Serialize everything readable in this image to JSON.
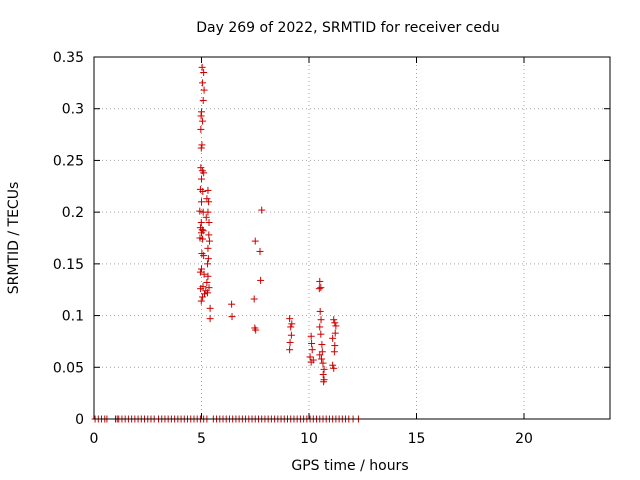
{
  "chart_data": {
    "type": "scatter",
    "title": "Day 269 of 2022, SRMTID for receiver cedu",
    "xlabel": "GPS time / hours",
    "ylabel": "SRMTID / TECUs",
    "xlim": [
      0,
      24
    ],
    "ylim": [
      0,
      0.35
    ],
    "x_ticks": [
      0,
      5,
      10,
      15,
      20
    ],
    "x_tick_labels": [
      "0",
      "5",
      "10",
      "15",
      "20"
    ],
    "y_ticks": [
      0,
      0.05,
      0.1,
      0.15,
      0.2,
      0.25,
      0.3,
      0.35
    ],
    "y_tick_labels": [
      "0",
      "0.05",
      "0.1",
      "0.15",
      "0.2",
      "0.25",
      "0.3",
      "0.35"
    ],
    "grid": true,
    "marker": "+",
    "color": "#cc0000",
    "series": [
      {
        "name": "SRMTID",
        "points": [
          [
            5.03,
            0.34
          ],
          [
            5.1,
            0.335
          ],
          [
            5.05,
            0.325
          ],
          [
            5.12,
            0.318
          ],
          [
            5.08,
            0.308
          ],
          [
            5.0,
            0.297
          ],
          [
            4.98,
            0.293
          ],
          [
            5.05,
            0.288
          ],
          [
            4.97,
            0.28
          ],
          [
            5.02,
            0.265
          ],
          [
            4.99,
            0.262
          ],
          [
            4.97,
            0.243
          ],
          [
            5.04,
            0.24
          ],
          [
            5.1,
            0.238
          ],
          [
            5.0,
            0.232
          ],
          [
            4.95,
            0.222
          ],
          [
            5.06,
            0.22
          ],
          [
            5.3,
            0.221
          ],
          [
            5.25,
            0.213
          ],
          [
            5.33,
            0.21
          ],
          [
            5.0,
            0.21
          ],
          [
            4.92,
            0.201
          ],
          [
            5.08,
            0.2
          ],
          [
            5.3,
            0.2
          ],
          [
            5.22,
            0.195
          ],
          [
            4.99,
            0.19
          ],
          [
            5.35,
            0.19
          ],
          [
            4.95,
            0.185
          ],
          [
            5.03,
            0.183
          ],
          [
            5.08,
            0.182
          ],
          [
            5.0,
            0.18
          ],
          [
            5.34,
            0.178
          ],
          [
            4.93,
            0.175
          ],
          [
            5.05,
            0.174
          ],
          [
            5.37,
            0.172
          ],
          [
            5.3,
            0.165
          ],
          [
            5.02,
            0.16
          ],
          [
            5.1,
            0.158
          ],
          [
            5.32,
            0.155
          ],
          [
            5.28,
            0.15
          ],
          [
            5.0,
            0.145
          ],
          [
            4.95,
            0.142
          ],
          [
            5.12,
            0.14
          ],
          [
            5.3,
            0.138
          ],
          [
            5.25,
            0.132
          ],
          [
            5.07,
            0.128
          ],
          [
            5.35,
            0.127
          ],
          [
            4.96,
            0.126
          ],
          [
            5.2,
            0.124
          ],
          [
            5.28,
            0.122
          ],
          [
            5.14,
            0.121
          ],
          [
            5.05,
            0.118
          ],
          [
            4.99,
            0.114
          ],
          [
            5.4,
            0.107
          ],
          [
            5.4,
            0.097
          ],
          [
            6.4,
            0.111
          ],
          [
            6.42,
            0.099
          ],
          [
            7.5,
            0.172
          ],
          [
            7.72,
            0.162
          ],
          [
            7.75,
            0.134
          ],
          [
            7.8,
            0.202
          ],
          [
            7.45,
            0.116
          ],
          [
            7.48,
            0.088
          ],
          [
            7.52,
            0.086
          ],
          [
            9.1,
            0.097
          ],
          [
            9.2,
            0.092
          ],
          [
            9.15,
            0.089
          ],
          [
            9.18,
            0.081
          ],
          [
            9.12,
            0.074
          ],
          [
            9.1,
            0.067
          ],
          [
            10.1,
            0.08
          ],
          [
            10.12,
            0.073
          ],
          [
            10.15,
            0.067
          ],
          [
            10.05,
            0.06
          ],
          [
            10.2,
            0.057
          ],
          [
            10.1,
            0.055
          ],
          [
            10.5,
            0.133
          ],
          [
            10.55,
            0.127
          ],
          [
            10.48,
            0.126
          ],
          [
            10.52,
            0.104
          ],
          [
            10.56,
            0.096
          ],
          [
            10.5,
            0.089
          ],
          [
            10.55,
            0.082
          ],
          [
            10.6,
            0.072
          ],
          [
            10.62,
            0.065
          ],
          [
            10.5,
            0.062
          ],
          [
            10.58,
            0.058
          ],
          [
            10.65,
            0.054
          ],
          [
            10.7,
            0.048
          ],
          [
            10.66,
            0.043
          ],
          [
            10.7,
            0.038
          ],
          [
            10.68,
            0.036
          ],
          [
            11.15,
            0.096
          ],
          [
            11.2,
            0.093
          ],
          [
            11.25,
            0.09
          ],
          [
            11.22,
            0.083
          ],
          [
            11.1,
            0.078
          ],
          [
            11.2,
            0.071
          ],
          [
            11.18,
            0.065
          ],
          [
            11.1,
            0.052
          ],
          [
            11.15,
            0.049
          ],
          [
            0.05,
            0
          ],
          [
            0.2,
            0
          ],
          [
            0.35,
            0
          ],
          [
            0.5,
            0
          ],
          [
            0.6,
            0
          ],
          [
            1.0,
            0
          ],
          [
            1.08,
            0
          ],
          [
            1.15,
            0
          ],
          [
            1.3,
            0
          ],
          [
            1.45,
            0
          ],
          [
            1.6,
            0
          ],
          [
            1.75,
            0
          ],
          [
            1.9,
            0
          ],
          [
            2.05,
            0
          ],
          [
            2.2,
            0
          ],
          [
            2.35,
            0
          ],
          [
            2.5,
            0
          ],
          [
            2.65,
            0
          ],
          [
            2.8,
            0
          ],
          [
            3.0,
            0
          ],
          [
            3.15,
            0
          ],
          [
            3.3,
            0
          ],
          [
            3.45,
            0
          ],
          [
            3.6,
            0
          ],
          [
            3.75,
            0
          ],
          [
            3.9,
            0
          ],
          [
            4.05,
            0
          ],
          [
            4.2,
            0
          ],
          [
            4.35,
            0
          ],
          [
            4.5,
            0
          ],
          [
            4.65,
            0
          ],
          [
            4.8,
            0
          ],
          [
            4.95,
            0
          ],
          [
            5.1,
            0
          ],
          [
            5.25,
            0
          ],
          [
            5.55,
            0
          ],
          [
            5.7,
            0
          ],
          [
            5.85,
            0
          ],
          [
            6.0,
            0
          ],
          [
            6.15,
            0
          ],
          [
            6.3,
            0
          ],
          [
            6.45,
            0
          ],
          [
            6.6,
            0
          ],
          [
            6.75,
            0
          ],
          [
            6.9,
            0
          ],
          [
            7.05,
            0
          ],
          [
            7.2,
            0
          ],
          [
            7.35,
            0
          ],
          [
            7.5,
            0
          ],
          [
            7.65,
            0
          ],
          [
            7.8,
            0
          ],
          [
            7.95,
            0
          ],
          [
            8.1,
            0
          ],
          [
            8.25,
            0
          ],
          [
            8.4,
            0
          ],
          [
            8.55,
            0
          ],
          [
            8.7,
            0
          ],
          [
            8.85,
            0
          ],
          [
            9.0,
            0
          ],
          [
            9.15,
            0
          ],
          [
            9.3,
            0
          ],
          [
            9.45,
            0
          ],
          [
            9.6,
            0
          ],
          [
            9.75,
            0
          ],
          [
            9.9,
            0
          ],
          [
            10.05,
            0
          ],
          [
            10.2,
            0
          ],
          [
            10.35,
            0
          ],
          [
            10.5,
            0
          ],
          [
            10.65,
            0
          ],
          [
            10.8,
            0
          ],
          [
            10.95,
            0
          ],
          [
            11.1,
            0
          ],
          [
            11.25,
            0
          ],
          [
            11.4,
            0
          ],
          [
            11.55,
            0
          ],
          [
            11.7,
            0
          ],
          [
            11.85,
            0
          ],
          [
            12.05,
            0
          ],
          [
            12.3,
            0
          ]
        ]
      }
    ]
  }
}
